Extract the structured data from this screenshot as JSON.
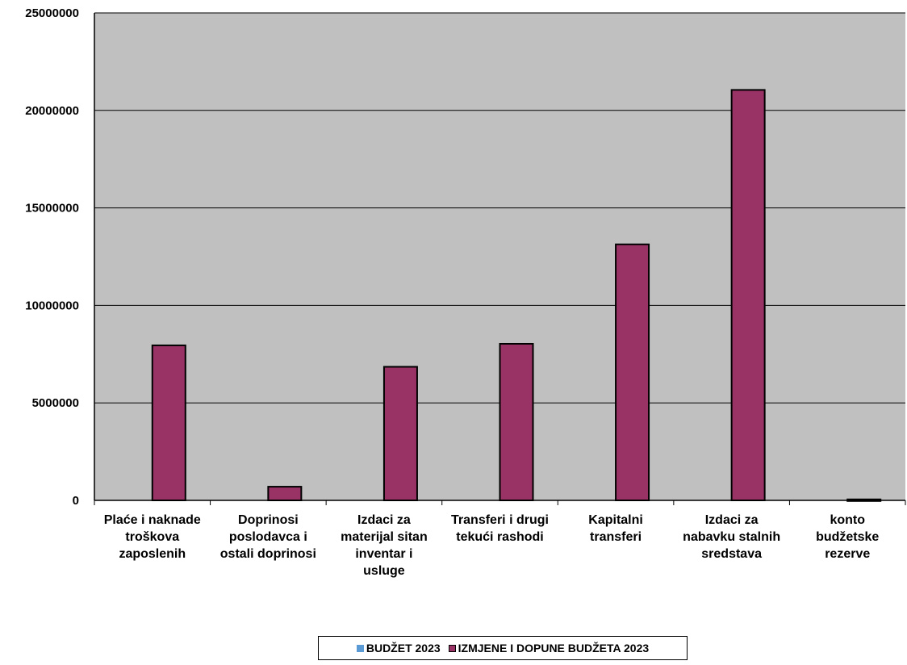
{
  "chart_data": {
    "type": "bar",
    "title": "",
    "xlabel": "",
    "ylabel": "",
    "ylim": [
      0,
      25000000
    ],
    "yticks": [
      0,
      5000000,
      10000000,
      15000000,
      20000000,
      25000000
    ],
    "grid": true,
    "legend_position": "bottom",
    "categories": [
      "Plaće i naknade troškova zaposlenih",
      "Doprinosi poslodavca i ostali doprinosi",
      "Izdaci za materijal sitan inventar i usluge",
      "Transferi i drugi tekući rashodi",
      "Kapitalni transferi",
      "Izdaci za nabavku stalnih sredstava",
      "konto budžetske rezerve"
    ],
    "category_lines": [
      [
        "Plaće i naknade",
        "troškova",
        "zaposlenih"
      ],
      [
        "Doprinosi",
        "poslodavca i",
        "ostali doprinosi"
      ],
      [
        "Izdaci za",
        "materijal sitan",
        "inventar i",
        "usluge"
      ],
      [
        "Transferi i drugi",
        "tekući rashodi"
      ],
      [
        "Kapitalni",
        "transferi"
      ],
      [
        "Izdaci za",
        "nabavku stalnih",
        "sredstava"
      ],
      [
        "konto",
        "budžetske",
        "rezerve"
      ]
    ],
    "series": [
      {
        "name": "BUDŽET 2023",
        "color": "#5b9bd5",
        "values": [
          0,
          0,
          0,
          0,
          0,
          0,
          0
        ]
      },
      {
        "name": "IZMJENE I DOPUNE BUDŽETA 2023",
        "color": "#993366",
        "values": [
          7950000,
          700000,
          6850000,
          8030000,
          13130000,
          21050000,
          50000
        ]
      }
    ],
    "plot_background": "#c0c0c0"
  }
}
